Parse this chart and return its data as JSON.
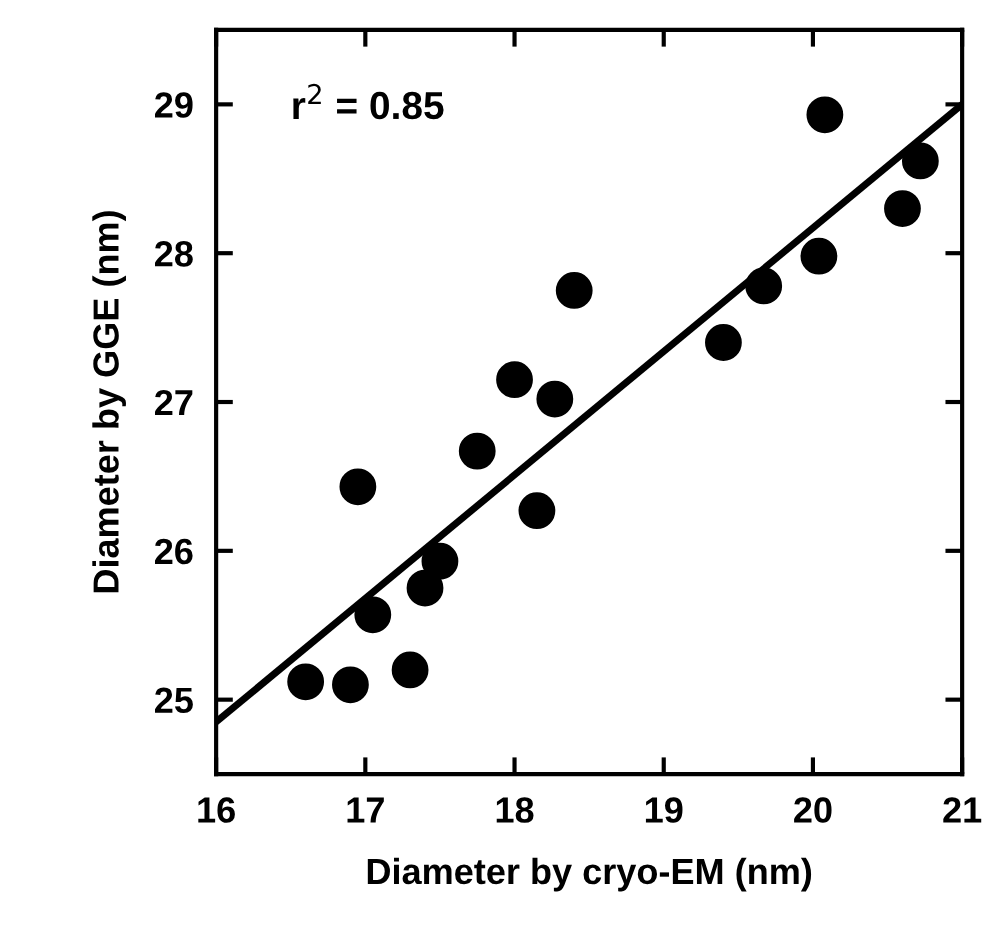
{
  "chart_data": {
    "type": "scatter",
    "xlabel": "Diameter by cryo-EM (nm)",
    "ylabel": "Diameter by GGE (nm)",
    "xlim": [
      16,
      21
    ],
    "ylim": [
      24.5,
      29.5
    ],
    "xticks": [
      16,
      17,
      18,
      19,
      20,
      21
    ],
    "yticks": [
      25,
      26,
      27,
      28,
      29
    ],
    "grid": false,
    "legend": false,
    "annotations": [
      "r$^{2}$ = 0.85"
    ],
    "series": [
      {
        "marker": "circle",
        "color": "#000000",
        "x": [
          16.6,
          16.9,
          17.3,
          17.05,
          17.4,
          17.5,
          16.95,
          18.15,
          17.75,
          18.0,
          18.27,
          18.4,
          19.4,
          19.67,
          20.04,
          20.08,
          20.6,
          20.72
        ],
        "values": [
          25.12,
          25.1,
          25.2,
          25.57,
          25.75,
          25.93,
          26.43,
          26.27,
          26.67,
          27.15,
          27.02,
          27.75,
          27.4,
          27.78,
          27.98,
          28.93,
          28.3,
          28.62
        ]
      },
      {
        "type": "line",
        "marker": "none",
        "color": "#000000",
        "line_style": "solid",
        "x": [
          16,
          21
        ],
        "values": [
          24.85,
          29.0
        ]
      }
    ]
  }
}
